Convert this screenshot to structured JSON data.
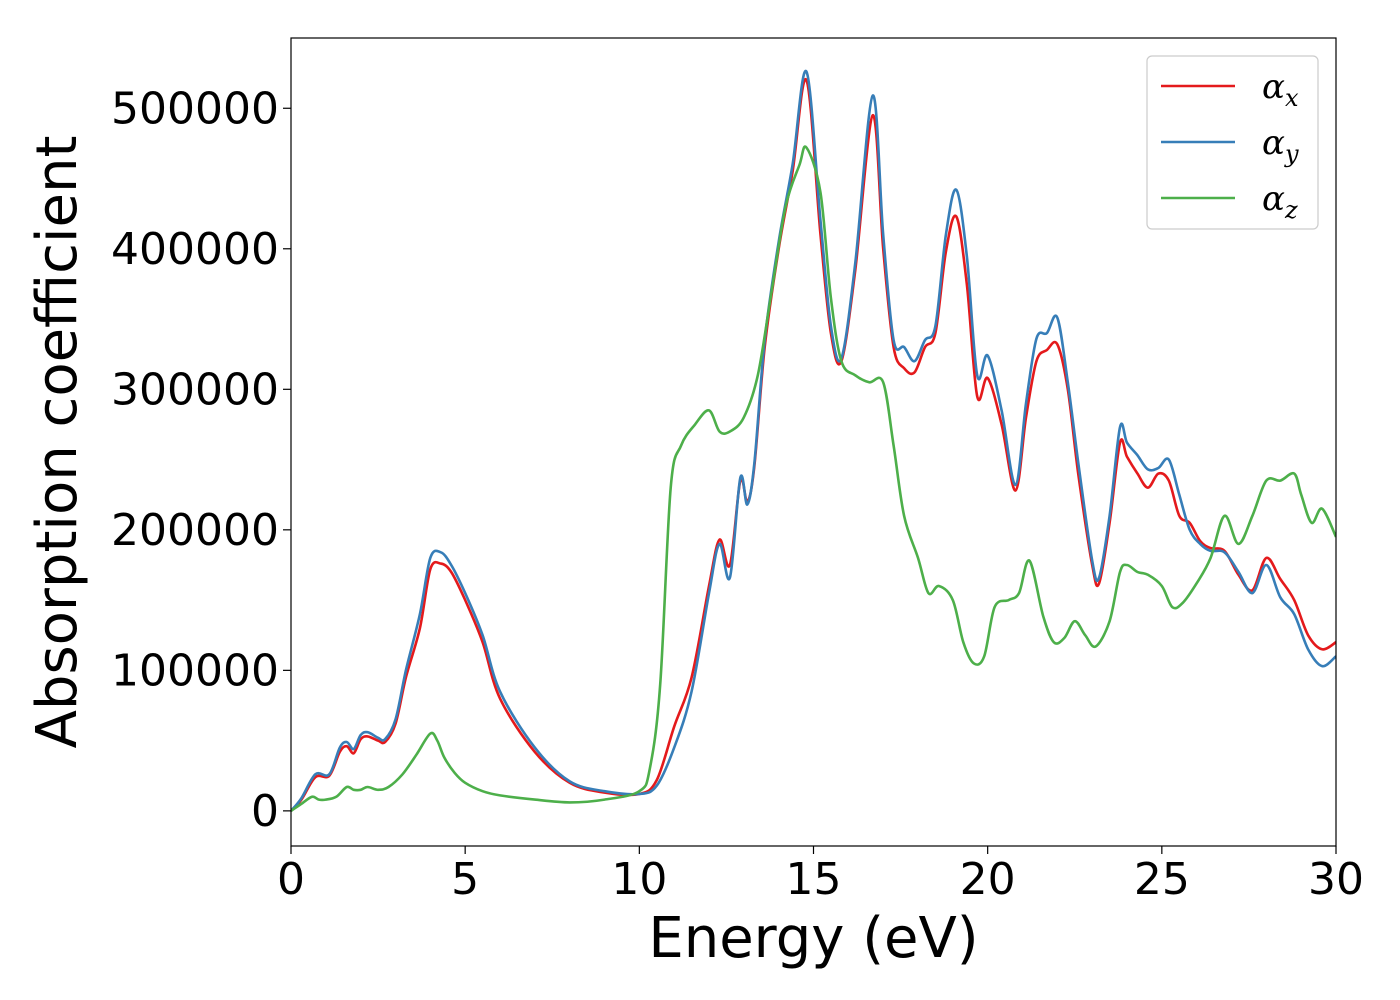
{
  "chart_data": {
    "type": "line",
    "xlabel": "Energy (eV)",
    "ylabel": "Absorption coefficient",
    "xlim": [
      0,
      30
    ],
    "ylim": [
      -25000,
      550000
    ],
    "xticks": [
      0,
      5,
      10,
      15,
      20,
      25,
      30
    ],
    "xtick_labels": [
      "0",
      "5",
      "10",
      "15",
      "20",
      "25",
      "30"
    ],
    "yticks": [
      0,
      100000,
      200000,
      300000,
      400000,
      500000
    ],
    "ytick_labels": [
      "0",
      "100000",
      "200000",
      "300000",
      "400000",
      "500000"
    ],
    "grid": false,
    "legend_position": "top-right",
    "series": [
      {
        "name": "αx",
        "symbol": "α",
        "subscript": "x",
        "color": "#e41a1c",
        "x": [
          0,
          0.3,
          0.7,
          1.1,
          1.4,
          1.6,
          1.8,
          2.0,
          2.2,
          2.5,
          2.7,
          3.0,
          3.3,
          3.7,
          4.0,
          4.3,
          4.6,
          5.0,
          5.5,
          6.0,
          7.0,
          8.0,
          9.0,
          10.0,
          10.5,
          11.0,
          11.5,
          12.0,
          12.3,
          12.6,
          12.9,
          13.1,
          13.3,
          13.6,
          14.0,
          14.4,
          14.8,
          15.2,
          15.5,
          15.8,
          16.2,
          16.7,
          17.0,
          17.3,
          17.6,
          17.9,
          18.2,
          18.5,
          18.8,
          19.1,
          19.4,
          19.7,
          20.0,
          20.4,
          20.8,
          21.1,
          21.4,
          21.7,
          22.0,
          22.3,
          22.6,
          23.0,
          23.2,
          23.5,
          23.8,
          24.0,
          24.3,
          24.6,
          24.9,
          25.2,
          25.5,
          25.8,
          26.1,
          26.4,
          26.8,
          27.2,
          27.6,
          28.0,
          28.4,
          28.8,
          29.2,
          29.6,
          30.0
        ],
        "y": [
          0,
          8000,
          24000,
          25000,
          42000,
          46000,
          41000,
          51000,
          53000,
          50000,
          49000,
          62000,
          95000,
          130000,
          172000,
          176000,
          170000,
          150000,
          120000,
          80000,
          42000,
          20000,
          13000,
          12000,
          22000,
          60000,
          95000,
          160000,
          193000,
          175000,
          235000,
          220000,
          245000,
          330000,
          400000,
          455000,
          520000,
          410000,
          340000,
          320000,
          385000,
          495000,
          400000,
          330000,
          315000,
          312000,
          330000,
          340000,
          398000,
          423000,
          375000,
          295000,
          308000,
          275000,
          228000,
          280000,
          320000,
          328000,
          332000,
          300000,
          240000,
          175000,
          162000,
          205000,
          262000,
          252000,
          240000,
          230000,
          240000,
          235000,
          210000,
          205000,
          192000,
          187000,
          185000,
          168000,
          157000,
          180000,
          165000,
          150000,
          125000,
          115000,
          120000
        ]
      },
      {
        "name": "αy",
        "symbol": "α",
        "subscript": "y",
        "color": "#377eb8",
        "x": [
          0,
          0.3,
          0.7,
          1.1,
          1.4,
          1.6,
          1.8,
          2.0,
          2.2,
          2.5,
          2.7,
          3.0,
          3.3,
          3.7,
          4.0,
          4.3,
          4.6,
          5.0,
          5.5,
          6.0,
          7.0,
          8.0,
          9.0,
          10.0,
          10.5,
          11.0,
          11.5,
          12.0,
          12.3,
          12.6,
          12.9,
          13.1,
          13.3,
          13.6,
          14.0,
          14.4,
          14.8,
          15.2,
          15.5,
          15.8,
          16.2,
          16.7,
          17.0,
          17.3,
          17.6,
          17.9,
          18.2,
          18.5,
          18.8,
          19.1,
          19.4,
          19.7,
          20.0,
          20.4,
          20.8,
          21.1,
          21.4,
          21.7,
          22.0,
          22.3,
          22.6,
          23.0,
          23.2,
          23.5,
          23.8,
          24.0,
          24.3,
          24.6,
          24.9,
          25.2,
          25.5,
          25.8,
          26.1,
          26.4,
          26.8,
          27.2,
          27.6,
          28.0,
          28.4,
          28.8,
          29.2,
          29.6,
          30.0
        ],
        "y": [
          0,
          9000,
          26000,
          26000,
          45000,
          49000,
          44000,
          54000,
          56000,
          52000,
          51000,
          65000,
          100000,
          140000,
          180000,
          184000,
          175000,
          155000,
          125000,
          85000,
          45000,
          21000,
          14000,
          12000,
          18000,
          45000,
          85000,
          155000,
          190000,
          166000,
          237000,
          218000,
          247000,
          335000,
          405000,
          460000,
          526000,
          420000,
          345000,
          322000,
          390000,
          509000,
          410000,
          335000,
          330000,
          320000,
          335000,
          345000,
          410000,
          442000,
          395000,
          310000,
          324000,
          285000,
          232000,
          290000,
          336000,
          340000,
          351000,
          305000,
          248000,
          178000,
          166000,
          210000,
          273000,
          262000,
          253000,
          243000,
          244000,
          250000,
          225000,
          200000,
          190000,
          185000,
          184000,
          170000,
          155000,
          175000,
          152000,
          140000,
          115000,
          103000,
          110000
        ]
      },
      {
        "name": "αz",
        "symbol": "α",
        "subscript": "z",
        "color": "#4daf4a",
        "x": [
          0,
          0.3,
          0.6,
          0.8,
          1.0,
          1.3,
          1.6,
          1.8,
          2.0,
          2.2,
          2.5,
          2.8,
          3.2,
          3.6,
          4.0,
          4.2,
          4.4,
          4.7,
          5.0,
          5.5,
          6.0,
          7.0,
          8.0,
          9.0,
          10.0,
          10.3,
          10.6,
          10.9,
          11.2,
          11.6,
          12.0,
          12.3,
          12.6,
          13.0,
          13.4,
          13.8,
          14.2,
          14.6,
          14.8,
          15.2,
          15.5,
          15.8,
          16.2,
          16.6,
          17.0,
          17.3,
          17.6,
          18.0,
          18.3,
          18.6,
          19.0,
          19.3,
          19.6,
          19.9,
          20.2,
          20.6,
          20.9,
          21.2,
          21.6,
          21.9,
          22.2,
          22.5,
          22.8,
          23.1,
          23.5,
          23.8,
          24.0,
          24.3,
          24.6,
          25.0,
          25.3,
          25.6,
          26.0,
          26.4,
          26.8,
          27.2,
          27.6,
          28.0,
          28.4,
          28.8,
          29.0,
          29.3,
          29.6,
          30.0
        ],
        "y": [
          0,
          5000,
          10000,
          8000,
          8000,
          10000,
          17000,
          15000,
          15000,
          17000,
          15000,
          17000,
          26000,
          40000,
          55000,
          50000,
          38000,
          27000,
          20000,
          14000,
          11000,
          8000,
          6000,
          8000,
          14000,
          30000,
          90000,
          230000,
          260000,
          275000,
          285000,
          270000,
          270000,
          280000,
          310000,
          370000,
          430000,
          460000,
          472000,
          440000,
          365000,
          320000,
          310000,
          305000,
          305000,
          260000,
          210000,
          180000,
          155000,
          160000,
          150000,
          120000,
          105000,
          110000,
          145000,
          150000,
          155000,
          178000,
          138000,
          120000,
          123000,
          135000,
          125000,
          117000,
          135000,
          170000,
          175000,
          170000,
          168000,
          160000,
          145000,
          148000,
          162000,
          180000,
          210000,
          190000,
          210000,
          235000,
          235000,
          240000,
          225000,
          205000,
          215000,
          195000
        ]
      }
    ]
  }
}
